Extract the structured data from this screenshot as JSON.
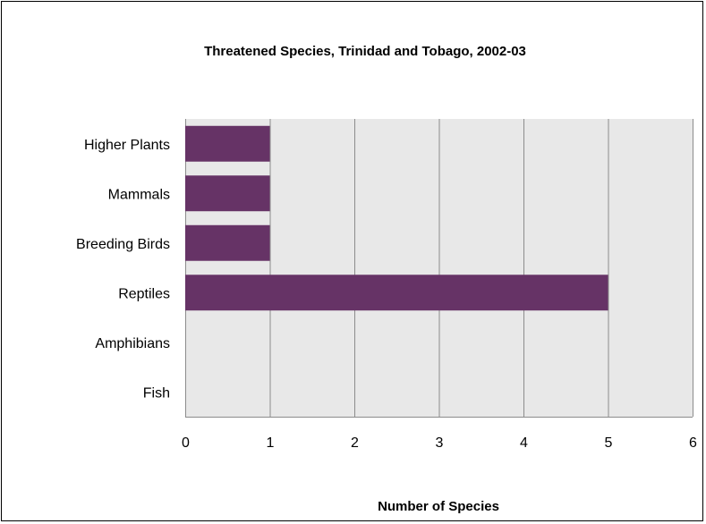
{
  "chart_data": {
    "type": "bar",
    "orientation": "horizontal",
    "title": "Threatened Species, Trinidad and Tobago, 2002-03",
    "xlabel": "Number of Species",
    "ylabel": "",
    "categories": [
      "Higher Plants",
      "Mammals",
      "Breeding Birds",
      "Reptiles",
      "Amphibians",
      "Fish"
    ],
    "values": [
      1,
      1,
      1,
      5,
      0,
      0
    ],
    "xlim": [
      0,
      6
    ],
    "xticks": [
      "0",
      "1",
      "2",
      "3",
      "4",
      "5",
      "6"
    ],
    "grid": "vertical",
    "legend": "none",
    "colors": {
      "bar": "#663366",
      "plot_background": "#e8e8e8",
      "gridline": "#8c8c8c"
    }
  }
}
